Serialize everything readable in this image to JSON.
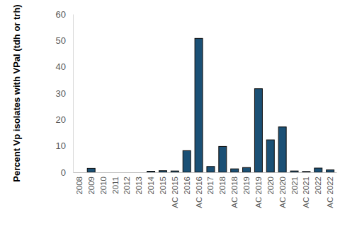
{
  "chart_data": {
    "type": "bar",
    "y_label": "Percent Vp isolates with VPaI (tdh or trh)",
    "categories": [
      "2008",
      "2009",
      "2010",
      "2011",
      "2012",
      "2013",
      "2014",
      "2015",
      "AC 2015",
      "2016",
      "AC 2016",
      "2017",
      "2018",
      "AC 2018",
      "2019",
      "AC 2019",
      "2020",
      "AC 2020",
      "2021",
      "AC 2021",
      "2022",
      "AC 2022"
    ],
    "values": [
      0,
      1.5,
      0,
      0,
      0,
      0,
      0.4,
      0.6,
      0.5,
      8.2,
      50.8,
      2.2,
      9.8,
      1.3,
      1.8,
      31.7,
      12.3,
      17.2,
      0.5,
      0.3,
      1.6,
      0.9
    ],
    "color": "#1b5075",
    "ylim": [
      0,
      60
    ],
    "yticks": [
      0,
      10,
      20,
      30,
      40,
      50,
      60
    ],
    "grid": false
  }
}
